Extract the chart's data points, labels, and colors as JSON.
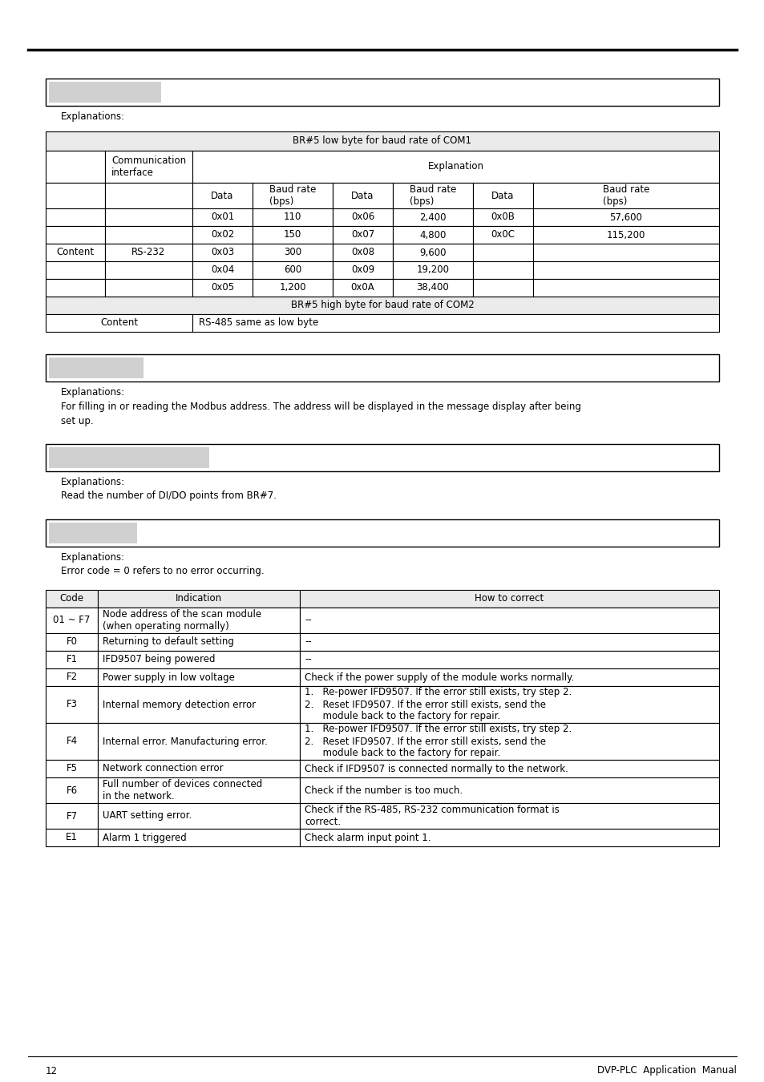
{
  "page_bg": "#ffffff",
  "explanations1": "Explanations:",
  "table1_title": "BR#5 low byte for baud rate of COM1",
  "table1_rows": [
    [
      "0x01",
      "110",
      "0x06",
      "2,400",
      "0x0B",
      "57,600"
    ],
    [
      "0x02",
      "150",
      "0x07",
      "4,800",
      "0x0C",
      "115,200"
    ],
    [
      "0x03",
      "300",
      "0x08",
      "9,600",
      "",
      ""
    ],
    [
      "0x04",
      "600",
      "0x09",
      "19,200",
      "",
      ""
    ],
    [
      "0x05",
      "1,200",
      "0x0A",
      "38,400",
      "",
      ""
    ]
  ],
  "table1_content_label": "Content",
  "table1_interface_label": "RS-232",
  "table1_footer1": "BR#5 high byte for baud rate of COM2",
  "table1_footer2_label": "Content",
  "table1_footer2_text": "RS-485 same as low byte",
  "section2_explanations": "Explanations:",
  "section2_line1": "For filling in or reading the Modbus address. The address will be displayed in the message display after being",
  "section2_line2": "set up.",
  "section3_explanations": "Explanations:",
  "section3_text": "Read the number of DI/DO points from BR#7.",
  "section4_explanations": "Explanations:",
  "section4_text": "Error code = 0 refers to no error occurring.",
  "table2_headers": [
    "Code",
    "Indication",
    "How to correct"
  ],
  "table2_rows": [
    [
      "01 ~ F7",
      "Node address of the scan module\n(when operating normally)",
      "--"
    ],
    [
      "F0",
      "Returning to default setting",
      "--"
    ],
    [
      "F1",
      "IFD9507 being powered",
      "--"
    ],
    [
      "F2",
      "Power supply in low voltage",
      "Check if the power supply of the module works normally."
    ],
    [
      "F3",
      "Internal memory detection error",
      "1.   Re-power IFD9507. If the error still exists, try step 2.\n2.   Reset IFD9507. If the error still exists, send the\n      module back to the factory for repair."
    ],
    [
      "F4",
      "Internal error. Manufacturing error.",
      "1.   Re-power IFD9507. If the error still exists, try step 2.\n2.   Reset IFD9507. If the error still exists, send the\n      module back to the factory for repair."
    ],
    [
      "F5",
      "Network connection error",
      "Check if IFD9507 is connected normally to the network."
    ],
    [
      "F6",
      "Full number of devices connected\nin the network.",
      "Check if the number is too much."
    ],
    [
      "F7",
      "UART setting error.",
      "Check if the RS-485, RS-232 communication format is\ncorrect."
    ],
    [
      "E1",
      "Alarm 1 triggered",
      "Check alarm input point 1."
    ]
  ],
  "footer_page": "12",
  "footer_text": "DVP-PLC  Application  Manual",
  "gray_color": "#d0d0d0",
  "light_gray": "#ebebeb",
  "border_color": "#000000",
  "font_size": 8.5,
  "font_family": "DejaVu Sans"
}
